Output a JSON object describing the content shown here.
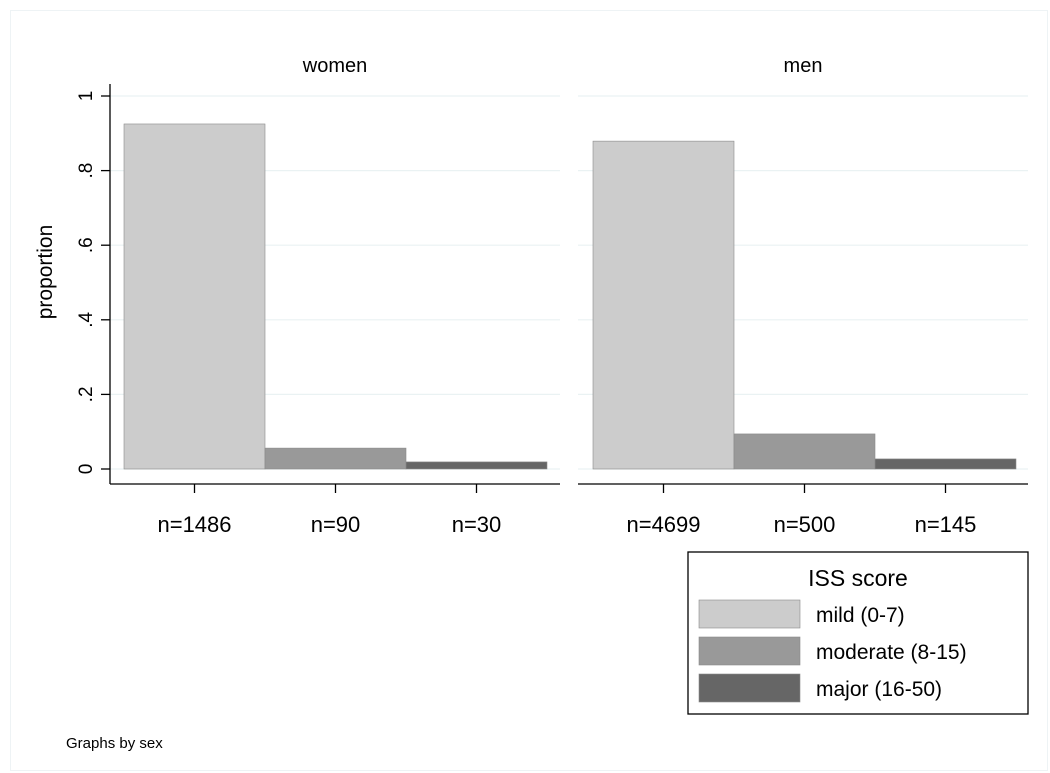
{
  "chart_data": {
    "type": "bar",
    "ylabel": "proportion",
    "ylim": [
      0,
      1
    ],
    "yticks": [
      0,
      0.2,
      0.4,
      0.6,
      0.8,
      1
    ],
    "ytick_labels": [
      "0",
      ".2",
      ".4",
      ".6",
      ".8",
      "1"
    ],
    "grid": true,
    "series_names": [
      "mild (0-7)",
      "moderate (8-15)",
      "major (16-50)"
    ],
    "panels": [
      {
        "title": "women",
        "categories": [
          "n=1486",
          "n=90",
          "n=30"
        ],
        "values": [
          0.925,
          0.056,
          0.019
        ]
      },
      {
        "title": "men",
        "categories": [
          "n=4699",
          "n=500",
          "n=145"
        ],
        "values": [
          0.879,
          0.094,
          0.027
        ]
      }
    ],
    "legend": {
      "title": "ISS score",
      "placement": "bottom-right",
      "items": [
        "mild (0-7)",
        "moderate (8-15)",
        "major (16-50)"
      ]
    },
    "note": "Graphs by sex",
    "colors": [
      "#cccccc",
      "#999999",
      "#666666"
    ],
    "gridline_color": "#eaf2f3"
  }
}
